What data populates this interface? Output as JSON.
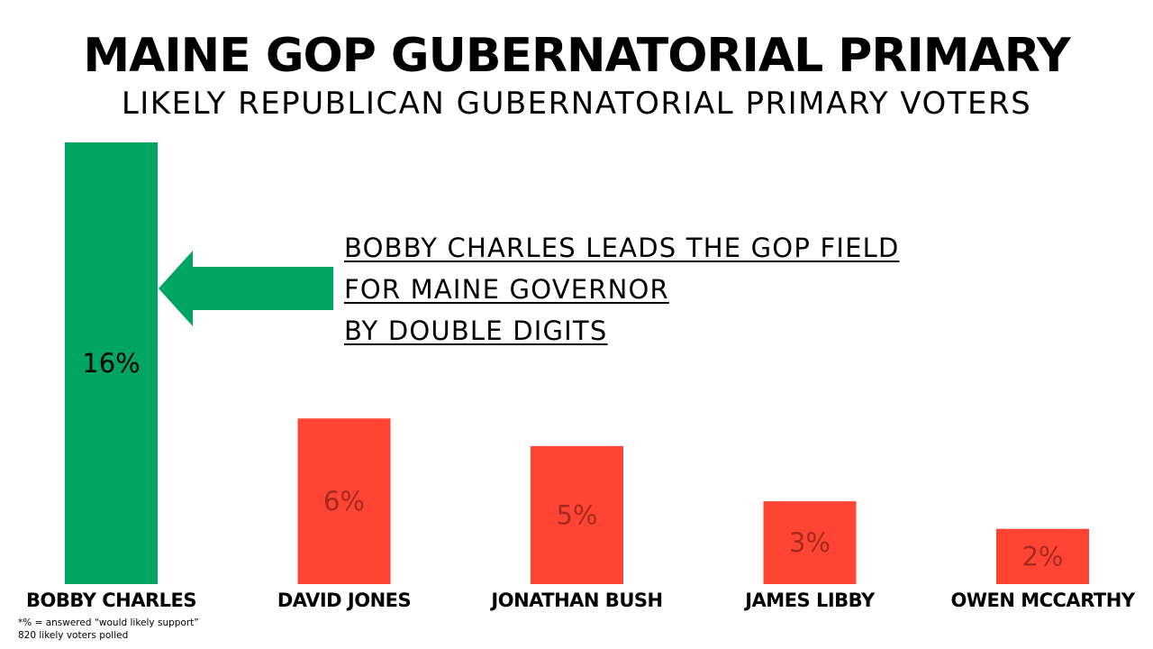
{
  "header": {
    "title": "MAINE GOP GUBERNATORIAL PRIMARY",
    "subtitle": "LIKELY REPUBLICAN GUBERNATORIAL PRIMARY VOTERS"
  },
  "callout": {
    "line1": "BOBBY CHARLES LEADS THE GOP FIELD",
    "line2": "FOR MAINE GOVERNOR ",
    "line3": "BY DOUBLE DIGITS"
  },
  "footnote": {
    "line1": "*% = answered “would likely support”",
    "line2": "820 likely voters polled"
  },
  "colors": {
    "leader": "#00a562",
    "others": "#ff4433",
    "leader_label": "#000000",
    "others_label": "#a32a1c",
    "arrow": "#00a562"
  },
  "chart_data": {
    "type": "bar",
    "categories": [
      "BOBBY CHARLES",
      "DAVID JONES",
      "JONATHAN BUSH",
      "JAMES LIBBY",
      "OWEN MCCARTHY"
    ],
    "values": [
      16,
      6,
      5,
      3,
      2
    ],
    "value_labels": [
      "16%",
      "6%",
      "5%",
      "3%",
      "2%"
    ],
    "highlight_index": 0,
    "ylim": [
      0,
      16
    ],
    "grid": false,
    "legend": "none"
  }
}
